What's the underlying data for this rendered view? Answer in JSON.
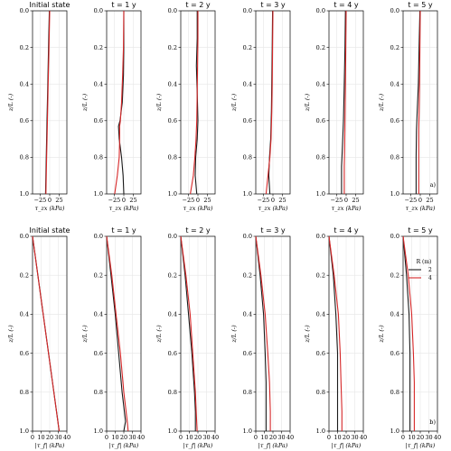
{
  "colors": {
    "radius_2": "#1a1a1a",
    "radius_4": "#d62728",
    "grid": "#e6e6e6"
  },
  "chart_data": [
    {
      "type": "line",
      "row": "a",
      "panel_label": "a)",
      "xlabel": "τ_zx (kPa)",
      "ylabel": "z/L (-)",
      "xlim": [
        -45,
        45
      ],
      "ylim": [
        0,
        1.0
      ],
      "x_ticks": [
        "−25",
        "0",
        "25"
      ],
      "y_ticks": [
        "0.0",
        "0.2",
        "0.4",
        "0.6",
        "0.8",
        "1.0"
      ],
      "panels": [
        {
          "title": "Initial state",
          "series": [
            {
              "radius": "2",
              "z": [
                0,
                0.2,
                0.4,
                0.6,
                0.8,
                1.0
              ],
              "x": [
                -1,
                -3,
                -5,
                -7,
                -9,
                -11
              ]
            },
            {
              "radius": "4",
              "z": [
                0,
                0.2,
                0.4,
                0.6,
                0.8,
                1.0
              ],
              "x": [
                0,
                -2,
                -4,
                -6,
                -8,
                -10
              ]
            }
          ]
        },
        {
          "title": "t = 1 y",
          "series": [
            {
              "radius": "2",
              "z": [
                0,
                0.2,
                0.35,
                0.5,
                0.6,
                0.63,
                0.7,
                0.8,
                0.9,
                1.0
              ],
              "x": [
                0,
                0,
                -1,
                -4,
                -10,
                -14,
                -12,
                -6,
                -2,
                0
              ]
            },
            {
              "radius": "4",
              "z": [
                0,
                0.2,
                0.35,
                0.5,
                0.6,
                0.63,
                0.7,
                0.8,
                0.9,
                1.0
              ],
              "x": [
                0,
                -1,
                -3,
                -6,
                -9,
                -11,
                -11,
                -12,
                -17,
                -24
              ]
            }
          ]
        },
        {
          "title": "t = 2 y",
          "series": [
            {
              "radius": "2",
              "z": [
                0,
                0.15,
                0.3,
                0.45,
                0.6,
                0.7,
                0.8,
                0.9,
                1.0
              ],
              "x": [
                -2,
                -2,
                -4,
                -2,
                0,
                -2,
                -6,
                -7,
                -3
              ]
            },
            {
              "radius": "4",
              "z": [
                0,
                0.15,
                0.3,
                0.45,
                0.6,
                0.7,
                0.8,
                0.9,
                1.0
              ],
              "x": [
                0,
                0,
                -1,
                -2,
                -3,
                -5,
                -8,
                -12,
                -20
              ]
            }
          ]
        },
        {
          "title": "t = 3 y",
          "series": [
            {
              "radius": "2",
              "z": [
                0,
                0.2,
                0.4,
                0.55,
                0.7,
                0.8,
                0.9,
                1.0
              ],
              "x": [
                -1,
                -2,
                -3,
                -4,
                -6,
                -9,
                -11,
                -8
              ]
            },
            {
              "radius": "4",
              "z": [
                0,
                0.2,
                0.4,
                0.55,
                0.7,
                0.8,
                0.9,
                1.0
              ],
              "x": [
                0,
                -1,
                -2,
                -3,
                -5,
                -8,
                -13,
                -18
              ]
            }
          ]
        },
        {
          "title": "t = 4 y",
          "series": [
            {
              "radius": "2",
              "z": [
                0,
                0.2,
                0.4,
                0.6,
                0.75,
                0.85,
                1.0
              ],
              "x": [
                -2,
                -3,
                -5,
                -7,
                -10,
                -12,
                -12
              ]
            },
            {
              "radius": "4",
              "z": [
                0,
                0.2,
                0.4,
                0.6,
                0.75,
                0.85,
                1.0
              ],
              "x": [
                0,
                -1,
                -2,
                -3,
                -4,
                -5,
                -5
              ]
            }
          ]
        },
        {
          "title": "t = 5 y",
          "series": [
            {
              "radius": "2",
              "z": [
                0,
                0.2,
                0.4,
                0.55,
                0.65,
                0.8,
                1.0
              ],
              "x": [
                -1,
                -3,
                -5,
                -8,
                -10,
                -11,
                -11
              ]
            },
            {
              "radius": "4",
              "z": [
                0,
                0.2,
                0.4,
                0.55,
                0.65,
                0.8,
                1.0
              ],
              "x": [
                0,
                -1,
                -2,
                -3,
                -4,
                -4,
                -4
              ]
            }
          ]
        }
      ]
    },
    {
      "type": "line",
      "row": "b",
      "panel_label": "b)",
      "xlabel": "|τ_f| (kPa)",
      "ylabel": "z/L (-)",
      "xlim": [
        0,
        40
      ],
      "ylim": [
        0,
        1.0
      ],
      "x_ticks": [
        "0",
        "10",
        "20",
        "30",
        "40"
      ],
      "y_ticks": [
        "0.0",
        "0.2",
        "0.4",
        "0.6",
        "0.8",
        "1.0"
      ],
      "legend": {
        "title": "R (m)",
        "entries": [
          "2",
          "4"
        ],
        "position": "top-right"
      },
      "panels": [
        {
          "title": "Initial state",
          "series": [
            {
              "radius": "2",
              "z": [
                0,
                1.0
              ],
              "x": [
                0,
                31
              ]
            },
            {
              "radius": "4",
              "z": [
                0,
                1.0
              ],
              "x": [
                0,
                31
              ]
            }
          ]
        },
        {
          "title": "t = 1 y",
          "series": [
            {
              "radius": "2",
              "z": [
                0,
                0.2,
                0.4,
                0.6,
                0.8,
                0.95,
                1.0
              ],
              "x": [
                0,
                5,
                10,
                14,
                18,
                22,
                20
              ]
            },
            {
              "radius": "4",
              "z": [
                0,
                0.2,
                0.4,
                0.6,
                0.8,
                0.95,
                1.0
              ],
              "x": [
                0,
                6,
                11,
                16,
                20,
                24,
                25
              ]
            }
          ]
        },
        {
          "title": "t = 2 y",
          "series": [
            {
              "radius": "2",
              "z": [
                0,
                0.2,
                0.4,
                0.6,
                0.8,
                0.9,
                1.0
              ],
              "x": [
                0,
                5,
                9,
                13,
                16,
                17,
                17
              ]
            },
            {
              "radius": "4",
              "z": [
                0,
                0.2,
                0.4,
                0.6,
                0.8,
                0.9,
                1.0
              ],
              "x": [
                0,
                6,
                11,
                14,
                17,
                18,
                19
              ]
            }
          ]
        },
        {
          "title": "t = 3 y",
          "series": [
            {
              "radius": "2",
              "z": [
                0,
                0.2,
                0.4,
                0.6,
                0.75,
                0.9,
                1.0
              ],
              "x": [
                0,
                5,
                9,
                11,
                12,
                12,
                12
              ]
            },
            {
              "radius": "4",
              "z": [
                0,
                0.2,
                0.4,
                0.6,
                0.75,
                0.9,
                1.0
              ],
              "x": [
                0,
                6,
                11,
                14,
                16,
                17,
                17
              ]
            }
          ]
        },
        {
          "title": "t = 4 y",
          "series": [
            {
              "radius": "2",
              "z": [
                0,
                0.2,
                0.4,
                0.6,
                0.75,
                0.9,
                1.0
              ],
              "x": [
                0,
                5,
                8,
                10,
                10,
                10,
                10
              ]
            },
            {
              "radius": "4",
              "z": [
                0,
                0.2,
                0.4,
                0.6,
                0.75,
                0.9,
                1.0
              ],
              "x": [
                0,
                6,
                11,
                13,
                14,
                15,
                15
              ]
            }
          ]
        },
        {
          "title": "t = 5 y",
          "series": [
            {
              "radius": "2",
              "z": [
                0,
                0.2,
                0.4,
                0.6,
                0.75,
                0.9,
                1.0
              ],
              "x": [
                0,
                4,
                7,
                8,
                8,
                8,
                8
              ]
            },
            {
              "radius": "4",
              "z": [
                0,
                0.2,
                0.4,
                0.6,
                0.75,
                0.9,
                1.0
              ],
              "x": [
                0,
                6,
                10,
                12,
                13,
                13,
                13
              ]
            }
          ]
        }
      ]
    }
  ]
}
